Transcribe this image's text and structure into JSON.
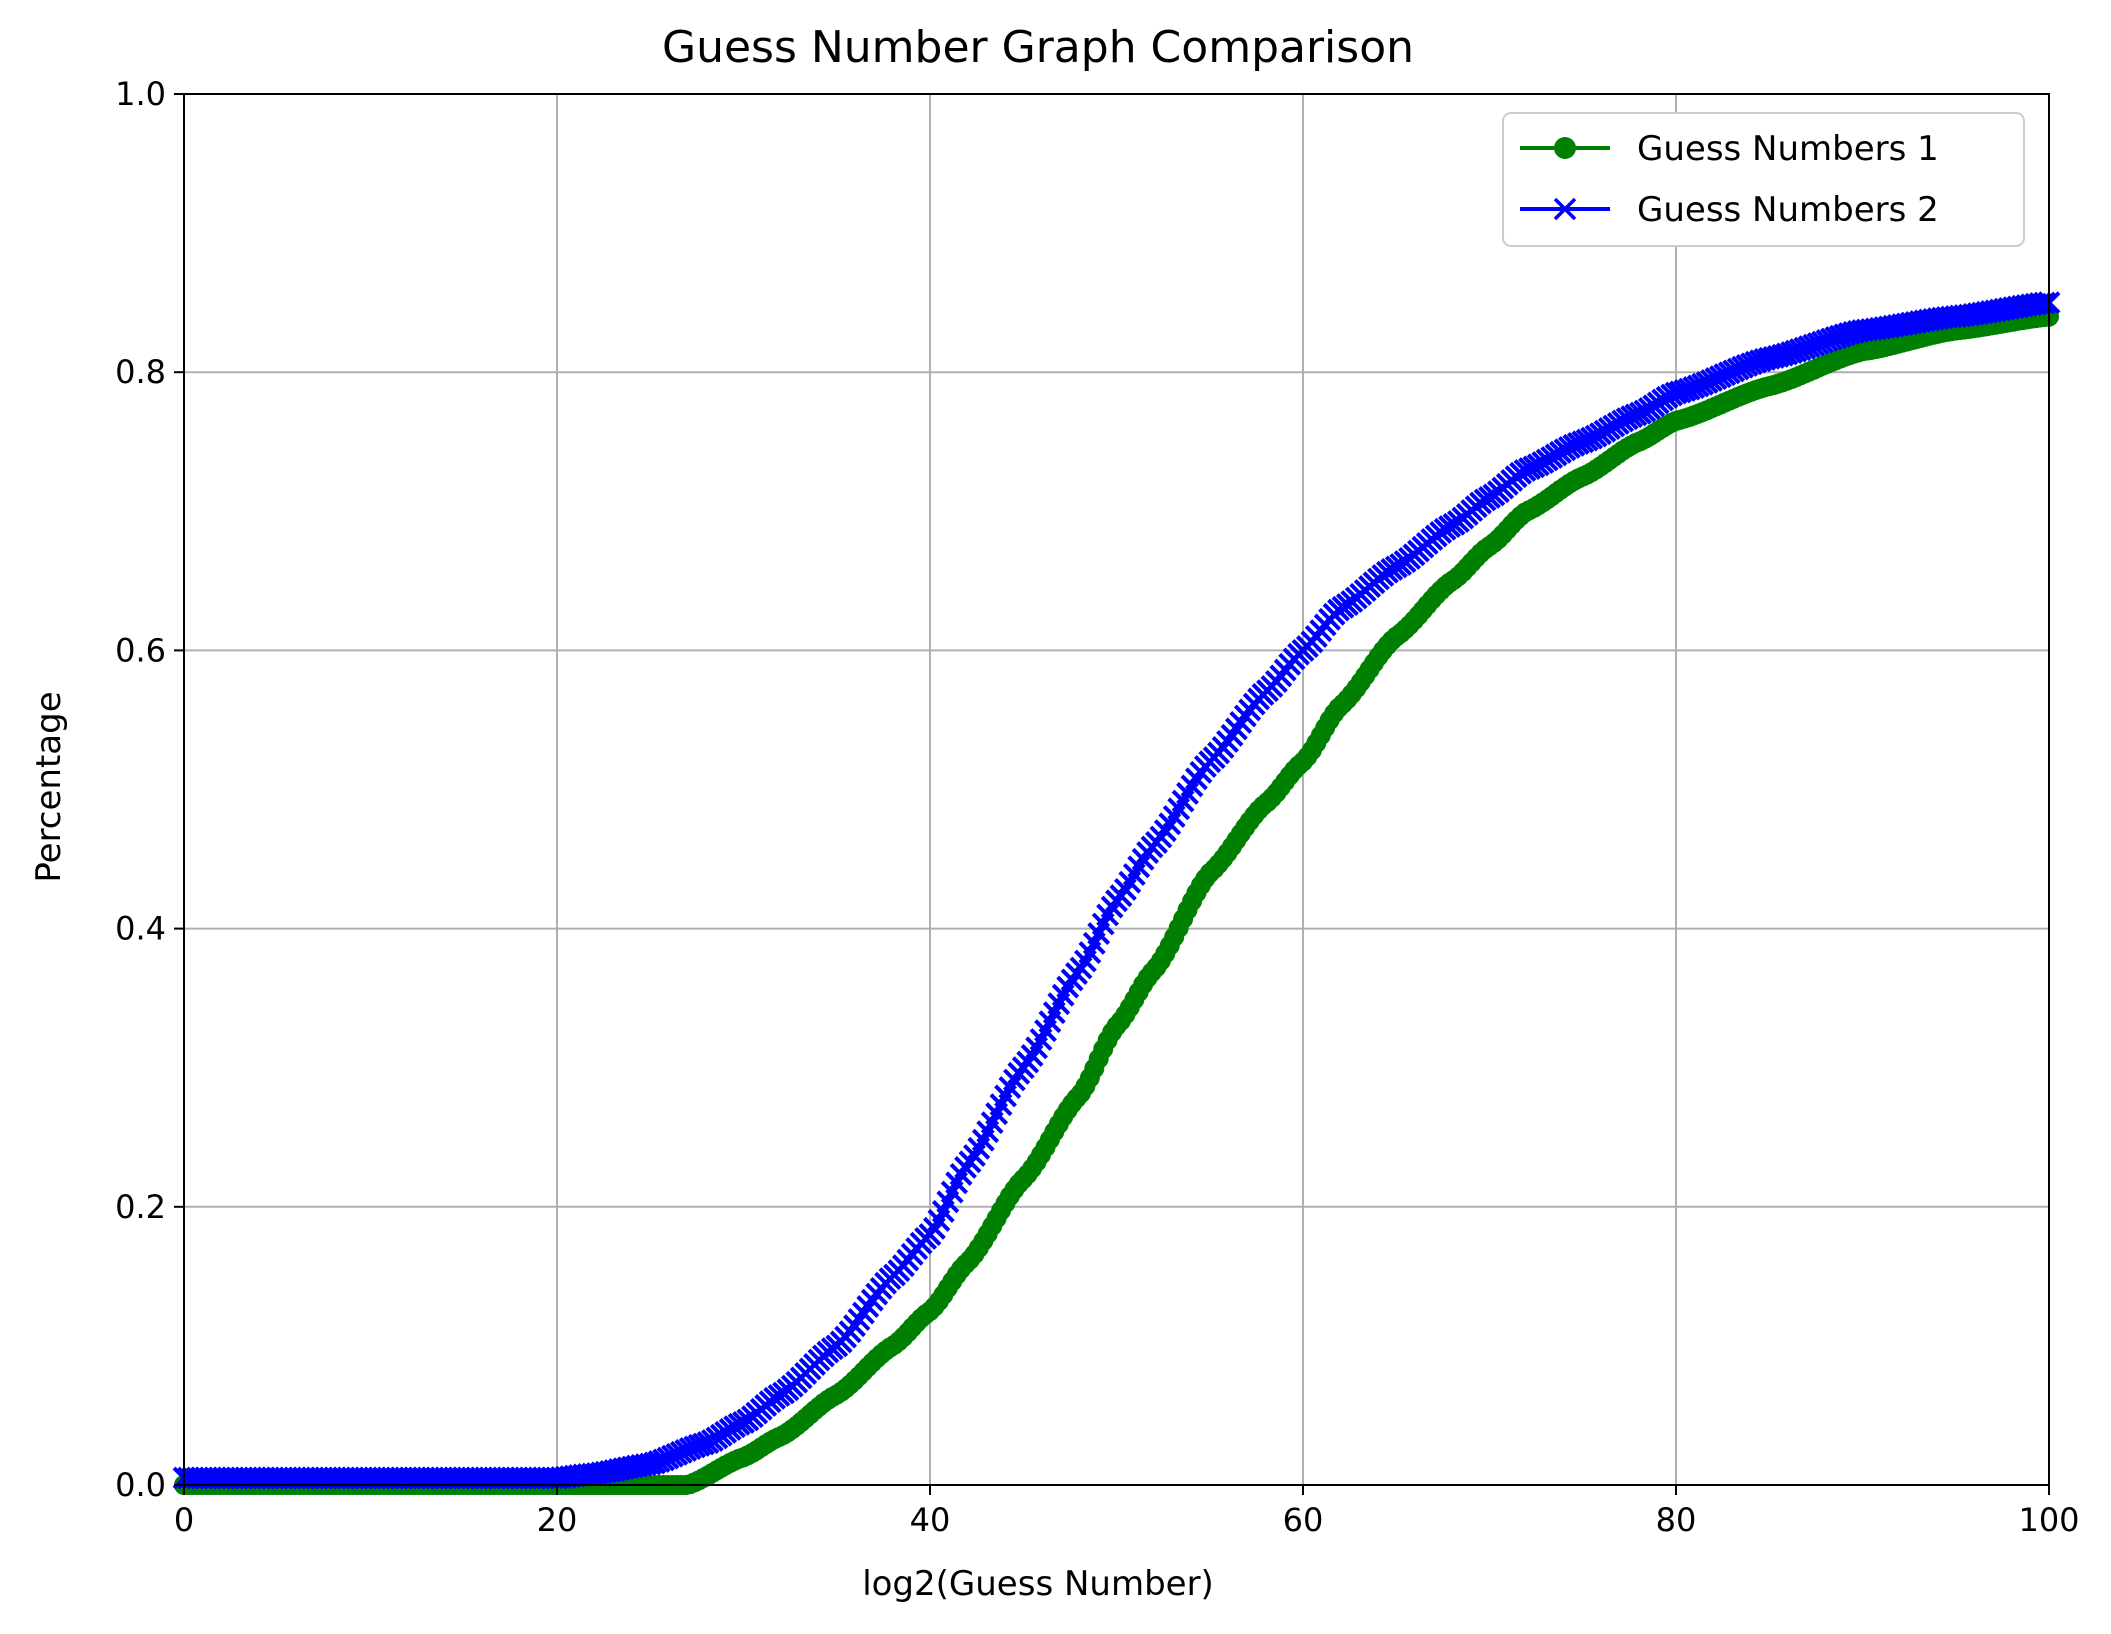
{
  "chart_data": {
    "type": "line",
    "title": "Guess Number Graph Comparison",
    "xlabel": "log2(Guess Number)",
    "ylabel": "Percentage",
    "xlim": [
      0,
      100
    ],
    "ylim": [
      0.0,
      1.0
    ],
    "x_ticks": [
      "0",
      "20",
      "40",
      "60",
      "80",
      "100"
    ],
    "y_ticks": [
      "0.0",
      "0.2",
      "0.4",
      "0.6",
      "0.8",
      "1.0"
    ],
    "grid": true,
    "legend_position": "top-right",
    "series": [
      {
        "name": "Guess Numbers 1",
        "color": "#008000",
        "marker": "circle",
        "x": [
          0,
          5,
          10,
          15,
          20,
          25,
          27,
          30,
          32,
          35,
          38,
          40,
          42,
          45,
          48,
          50,
          52,
          55,
          58,
          60,
          62,
          65,
          68,
          70,
          72,
          75,
          78,
          80,
          85,
          90,
          95,
          100
        ],
        "y": [
          0.0,
          0.0,
          0.0,
          0.0,
          0.0,
          0.0,
          0.0,
          0.02,
          0.035,
          0.065,
          0.1,
          0.125,
          0.16,
          0.22,
          0.28,
          0.33,
          0.37,
          0.44,
          0.49,
          0.52,
          0.56,
          0.61,
          0.65,
          0.675,
          0.7,
          0.725,
          0.75,
          0.765,
          0.79,
          0.815,
          0.83,
          0.84
        ]
      },
      {
        "name": "Guess Numbers 2",
        "color": "#0000ff",
        "marker": "x",
        "x": [
          0,
          5,
          10,
          15,
          20,
          22,
          25,
          28,
          30,
          32,
          35,
          38,
          40,
          42,
          45,
          48,
          50,
          52,
          55,
          58,
          60,
          62,
          65,
          68,
          70,
          72,
          75,
          78,
          80,
          85,
          90,
          95,
          100
        ],
        "y": [
          0.005,
          0.005,
          0.005,
          0.005,
          0.005,
          0.008,
          0.015,
          0.03,
          0.045,
          0.065,
          0.1,
          0.15,
          0.18,
          0.23,
          0.3,
          0.37,
          0.42,
          0.46,
          0.52,
          0.57,
          0.6,
          0.63,
          0.66,
          0.69,
          0.71,
          0.73,
          0.75,
          0.77,
          0.785,
          0.81,
          0.83,
          0.84,
          0.85
        ]
      }
    ]
  }
}
